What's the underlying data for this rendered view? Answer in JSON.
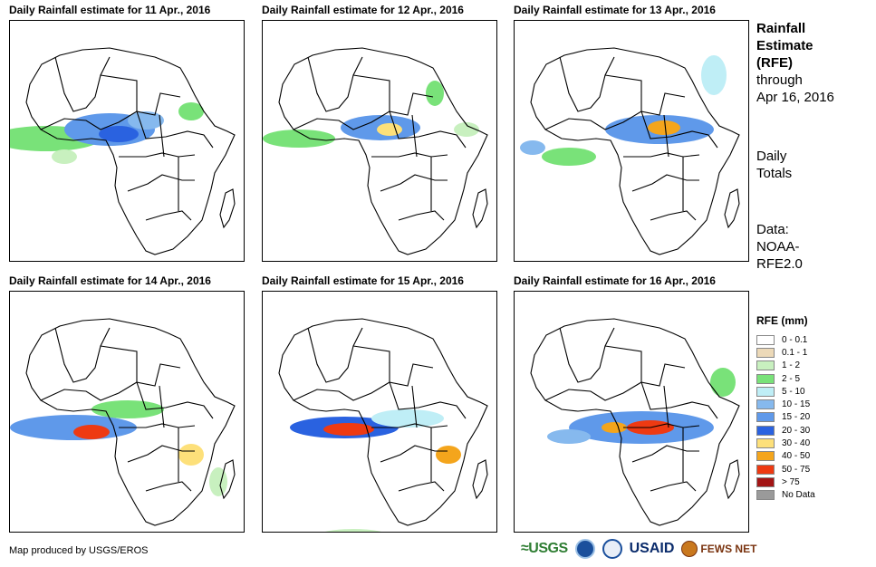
{
  "panels": [
    {
      "title": "Daily Rainfall estimate for 11 Apr., 2016"
    },
    {
      "title": "Daily Rainfall estimate for 12 Apr., 2016"
    },
    {
      "title": "Daily Rainfall estimate for 13 Apr., 2016"
    },
    {
      "title": "Daily Rainfall estimate for 14 Apr., 2016"
    },
    {
      "title": "Daily Rainfall estimate for 15 Apr., 2016"
    },
    {
      "title": "Daily Rainfall estimate for 16 Apr., 2016"
    }
  ],
  "side": {
    "title_lines": [
      "Rainfall",
      "Estimate",
      "(RFE)"
    ],
    "through_label": "through",
    "through_date": "Apr 16, 2016",
    "totals_lines": [
      "Daily",
      "Totals"
    ],
    "data_lines": [
      "Data:",
      "NOAA-",
      "RFE2.0"
    ]
  },
  "legend": {
    "title": "RFE (mm)",
    "items": [
      {
        "label": "0 - 0.1",
        "color": "#ffffff"
      },
      {
        "label": "0.1 - 1",
        "color": "#ecd9b8"
      },
      {
        "label": "1 - 2",
        "color": "#c8f0bf"
      },
      {
        "label": "2 - 5",
        "color": "#79e279"
      },
      {
        "label": "5 - 10",
        "color": "#bfeef6"
      },
      {
        "label": "10 - 15",
        "color": "#86b9ee"
      },
      {
        "label": "15 - 20",
        "color": "#5f99ea"
      },
      {
        "label": "20 - 30",
        "color": "#2a62e0"
      },
      {
        "label": "30 - 40",
        "color": "#fde07a"
      },
      {
        "label": "40 - 50",
        "color": "#f4a51c"
      },
      {
        "label": "50 - 75",
        "color": "#ee3a12"
      },
      {
        "label": "> 75",
        "color": "#a31515"
      },
      {
        "label": "No Data",
        "color": "#9a9a9a"
      }
    ]
  },
  "credit": "Map produced by USGS/EROS",
  "logos": {
    "usgs": "≈USGS",
    "usaid": "USAID",
    "fews": "FEWS NET"
  },
  "colors": {
    "outline": "#000000"
  }
}
